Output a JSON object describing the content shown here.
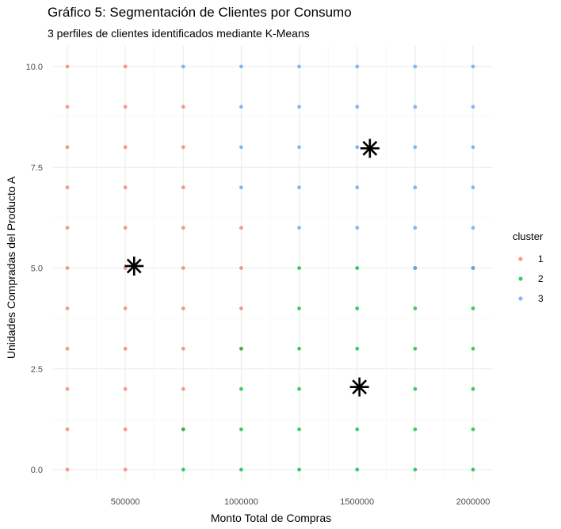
{
  "chart_data": {
    "type": "scatter",
    "title": "Gráfico 5: Segmentación de Clientes por Consumo",
    "subtitle": "3 perfiles de clientes identificados mediante K-Means",
    "xlabel": "Monto Total de Compras",
    "ylabel": "Unidades Compradas del Producto A",
    "x_ticks": [
      "500000",
      "1000000",
      "1500000",
      "2000000"
    ],
    "x_tick_values": [
      500000,
      1000000,
      1500000,
      2000000
    ],
    "y_ticks": [
      "0.0",
      "2.5",
      "5.0",
      "7.5",
      "10.0"
    ],
    "y_tick_values": [
      0,
      2.5,
      5,
      7.5,
      10
    ],
    "xlim": [
      250000,
      2000000
    ],
    "ylim": [
      0,
      10
    ],
    "grid": true,
    "legend_position": "right",
    "legend_title": "cluster",
    "series": [
      {
        "name": "1",
        "color": "#F8766D",
        "points": [
          [
            250000,
            10
          ],
          [
            250000,
            9
          ],
          [
            250000,
            8
          ],
          [
            250000,
            7
          ],
          [
            250000,
            6
          ],
          [
            250000,
            5
          ],
          [
            250000,
            4
          ],
          [
            250000,
            3
          ],
          [
            250000,
            2
          ],
          [
            250000,
            1
          ],
          [
            250000,
            0
          ],
          [
            500000,
            10
          ],
          [
            500000,
            9
          ],
          [
            500000,
            8
          ],
          [
            500000,
            7
          ],
          [
            500000,
            6
          ],
          [
            500000,
            5
          ],
          [
            500000,
            4
          ],
          [
            500000,
            3
          ],
          [
            500000,
            2
          ],
          [
            500000,
            1
          ],
          [
            500000,
            0
          ],
          [
            750000,
            9
          ],
          [
            750000,
            8
          ],
          [
            750000,
            7
          ],
          [
            750000,
            6
          ],
          [
            750000,
            5
          ],
          [
            750000,
            4
          ],
          [
            750000,
            3
          ],
          [
            750000,
            2
          ],
          [
            750000,
            1
          ],
          [
            1000000,
            6
          ],
          [
            1000000,
            5
          ],
          [
            1000000,
            4
          ],
          [
            1000000,
            3
          ]
        ]
      },
      {
        "name": "2",
        "color": "#00BA38",
        "points": [
          [
            750000,
            1
          ],
          [
            750000,
            0
          ],
          [
            1000000,
            3
          ],
          [
            1000000,
            2
          ],
          [
            1000000,
            1
          ],
          [
            1000000,
            0
          ],
          [
            1250000,
            5
          ],
          [
            1250000,
            4
          ],
          [
            1250000,
            3
          ],
          [
            1250000,
            2
          ],
          [
            1250000,
            1
          ],
          [
            1250000,
            0
          ],
          [
            1500000,
            5
          ],
          [
            1500000,
            4
          ],
          [
            1500000,
            3
          ],
          [
            1500000,
            2
          ],
          [
            1500000,
            1
          ],
          [
            1500000,
            0
          ],
          [
            1750000,
            5
          ],
          [
            1750000,
            4
          ],
          [
            1750000,
            3
          ],
          [
            1750000,
            2
          ],
          [
            1750000,
            1
          ],
          [
            1750000,
            0
          ],
          [
            2000000,
            5
          ],
          [
            2000000,
            4
          ],
          [
            2000000,
            3
          ],
          [
            2000000,
            2
          ],
          [
            2000000,
            1
          ],
          [
            2000000,
            0
          ]
        ]
      },
      {
        "name": "3",
        "color": "#619CFF",
        "points": [
          [
            750000,
            10
          ],
          [
            1000000,
            10
          ],
          [
            1000000,
            9
          ],
          [
            1000000,
            8
          ],
          [
            1000000,
            7
          ],
          [
            1250000,
            10
          ],
          [
            1250000,
            9
          ],
          [
            1250000,
            8
          ],
          [
            1250000,
            7
          ],
          [
            1250000,
            6
          ],
          [
            1500000,
            10
          ],
          [
            1500000,
            9
          ],
          [
            1500000,
            8
          ],
          [
            1500000,
            7
          ],
          [
            1500000,
            6
          ],
          [
            1750000,
            10
          ],
          [
            1750000,
            9
          ],
          [
            1750000,
            8
          ],
          [
            1750000,
            7
          ],
          [
            1750000,
            6
          ],
          [
            1750000,
            5
          ],
          [
            2000000,
            10
          ],
          [
            2000000,
            9
          ],
          [
            2000000,
            8
          ],
          [
            2000000,
            7
          ],
          [
            2000000,
            6
          ],
          [
            2000000,
            5
          ]
        ]
      }
    ],
    "centroids": [
      [
        538000,
        5.05
      ],
      [
        1555000,
        7.97
      ],
      [
        1510000,
        2.05
      ]
    ]
  }
}
